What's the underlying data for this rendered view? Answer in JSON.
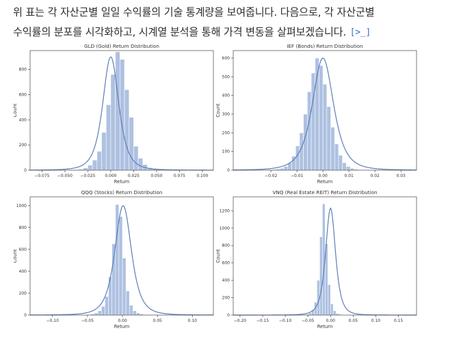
{
  "message": {
    "line1": "위 표는 각 자산군별 일일 수익률의 기술 통계량을 보여줍니다. 다음으로, 각 자산군별",
    "line2": "수익률의 분포를 시각화하고, 시계열 분석을 통해 가격 변동을 살펴보겠습니다.",
    "code_link_glyph": "[>_]"
  },
  "colors": {
    "bar_fill": "#aec1e1",
    "bar_edge": "#ffffff",
    "kde_line": "#5b7db8",
    "axis": "#444444"
  },
  "chart_data": [
    {
      "type": "bar",
      "title": "GLD (Gold) Return Distribution",
      "xlabel": "Return",
      "ylabel": "Count",
      "xlim": [
        -0.088,
        0.112
      ],
      "ylim": [
        0,
        950
      ],
      "xticks": [
        -0.075,
        -0.05,
        -0.025,
        0.0,
        0.025,
        0.05,
        0.075,
        0.1
      ],
      "xtick_labels": [
        "−0.075",
        "−0.050",
        "−0.025",
        "0.000",
        "0.025",
        "0.050",
        "0.075",
        "0.100"
      ],
      "yticks": [
        0,
        200,
        400,
        600,
        800
      ],
      "yticklabels": [
        "0",
        "200",
        "400",
        "600",
        "800"
      ],
      "bin_start": -0.05,
      "bin_width": 0.005,
      "values": [
        2,
        3,
        5,
        8,
        18,
        40,
        80,
        150,
        300,
        520,
        760,
        940,
        880,
        640,
        420,
        190,
        95,
        45,
        20,
        10,
        6,
        3,
        2
      ],
      "kde_center": 0.0,
      "kde_sigma": 0.0092,
      "kde_peak": 900,
      "grid": false,
      "legend": false
    },
    {
      "type": "bar",
      "title": "IEF (Bonds) Return Distribution",
      "xlabel": "Return",
      "ylabel": "Count",
      "xlim": [
        -0.0345,
        0.036
      ],
      "ylim": [
        0,
        640
      ],
      "xticks": [
        -0.02,
        -0.01,
        0.0,
        0.01,
        0.02,
        0.03
      ],
      "xtick_labels": [
        "−0.02",
        "−0.01",
        "0.00",
        "0.01",
        "0.02",
        "0.03"
      ],
      "yticks": [
        0,
        100,
        200,
        300,
        400,
        500,
        600
      ],
      "yticklabels": [
        "0",
        "100",
        "200",
        "300",
        "400",
        "500",
        "600"
      ],
      "bin_start": -0.021,
      "bin_width": 0.0015,
      "values": [
        2,
        4,
        6,
        10,
        20,
        40,
        75,
        130,
        200,
        300,
        420,
        520,
        600,
        560,
        460,
        340,
        230,
        140,
        80,
        40,
        20,
        10,
        5,
        3,
        2,
        1
      ],
      "kde_center": 0.0,
      "kde_sigma": 0.0043,
      "kde_peak": 600,
      "grid": false,
      "legend": false
    },
    {
      "type": "bar",
      "title": "QQQ (Stocks) Return Distribution",
      "xlabel": "Return",
      "ylabel": "Count",
      "xlim": [
        -0.132,
        0.13
      ],
      "ylim": [
        0,
        1080
      ],
      "xticks": [
        -0.1,
        -0.05,
        0.0,
        0.05,
        0.1
      ],
      "xtick_labels": [
        "−0.10",
        "−0.05",
        "0.00",
        "0.05",
        "0.10"
      ],
      "yticks": [
        0,
        200,
        400,
        600,
        800,
        1000
      ],
      "yticklabels": [
        "0",
        "200",
        "400",
        "600",
        "800",
        "1000"
      ],
      "bin_start": -0.05,
      "bin_width": 0.005,
      "values": [
        5,
        10,
        20,
        40,
        80,
        170,
        350,
        650,
        1010,
        900,
        520,
        220,
        90,
        40,
        20,
        10,
        5,
        3,
        2
      ],
      "kde_center": 0.001,
      "kde_sigma": 0.0125,
      "kde_peak": 1000,
      "grid": false,
      "legend": false
    },
    {
      "type": "bar",
      "title": "VNQ (Real Estate REIT) Return Distribution",
      "xlabel": "Return",
      "ylabel": "Count",
      "xlim": [
        -0.215,
        0.19
      ],
      "ylim": [
        0,
        1360
      ],
      "xticks": [
        -0.2,
        -0.15,
        -0.1,
        -0.05,
        0.0,
        0.05,
        0.1,
        0.15
      ],
      "xtick_labels": [
        "−0.20",
        "−0.15",
        "−0.10",
        "−0.05",
        "0.00",
        "0.05",
        "0.10",
        "0.15"
      ],
      "yticks": [
        0,
        200,
        400,
        600,
        800,
        1000,
        1200
      ],
      "yticklabels": [
        "0",
        "200",
        "400",
        "600",
        "800",
        "1000",
        "1200"
      ],
      "bin_start": -0.06,
      "bin_width": 0.006,
      "values": [
        5,
        10,
        25,
        60,
        150,
        400,
        900,
        1280,
        820,
        350,
        130,
        50,
        20,
        10,
        5,
        3,
        2
      ],
      "kde_center": 0.0,
      "kde_sigma": 0.0115,
      "kde_peak": 1230,
      "grid": false,
      "legend": false
    }
  ]
}
